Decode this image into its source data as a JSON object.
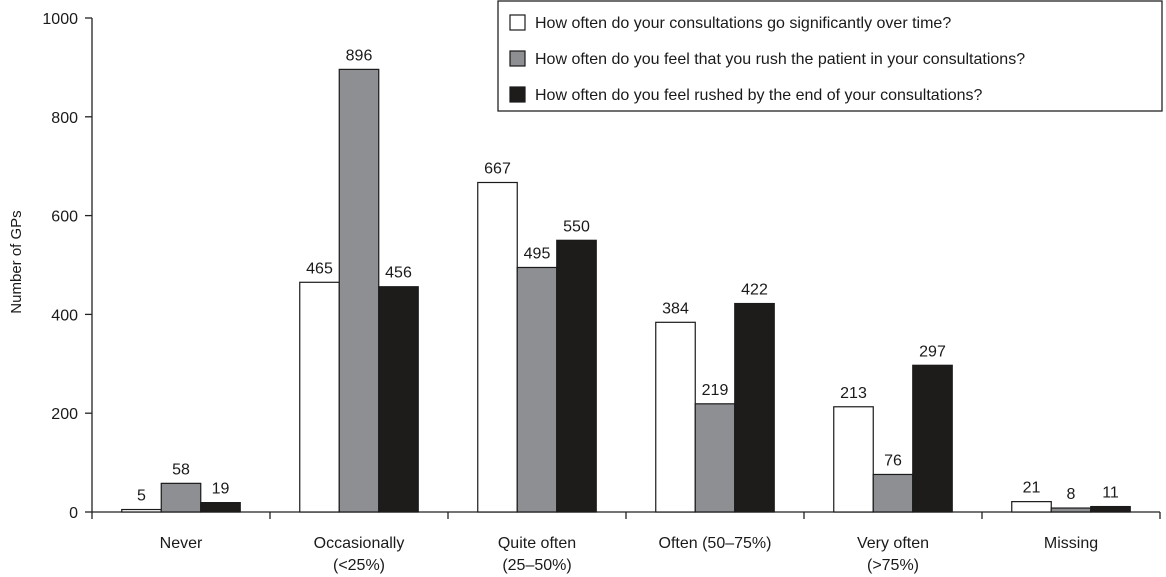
{
  "chart_data": {
    "type": "bar",
    "categories": [
      [
        "Never"
      ],
      [
        "Occasionally",
        "(<25%)"
      ],
      [
        "Quite often",
        "(25–50%)"
      ],
      [
        "Often (50–75%)"
      ],
      [
        "Very often",
        "(>75%)"
      ],
      [
        "Missing"
      ]
    ],
    "series": [
      {
        "name": "How often do your consultations go significantly over time?",
        "color": "#ffffff",
        "values": [
          5,
          465,
          667,
          384,
          213,
          21
        ]
      },
      {
        "name": "How often do you feel that you rush the patient in your consultations?",
        "color": "#8e8f93",
        "values": [
          58,
          896,
          495,
          219,
          76,
          8
        ]
      },
      {
        "name": "How often do you feel rushed by the end of your consultations?",
        "color": "#1e1b1b",
        "values": [
          19,
          456,
          550,
          422,
          297,
          11
        ]
      }
    ],
    "ylabel": "Number of GPs",
    "xlabel": "",
    "ylim": [
      0,
      1000
    ],
    "yticks": [
      0,
      200,
      400,
      600,
      800,
      1000
    ],
    "legend_position": "top-right",
    "grid": false
  }
}
